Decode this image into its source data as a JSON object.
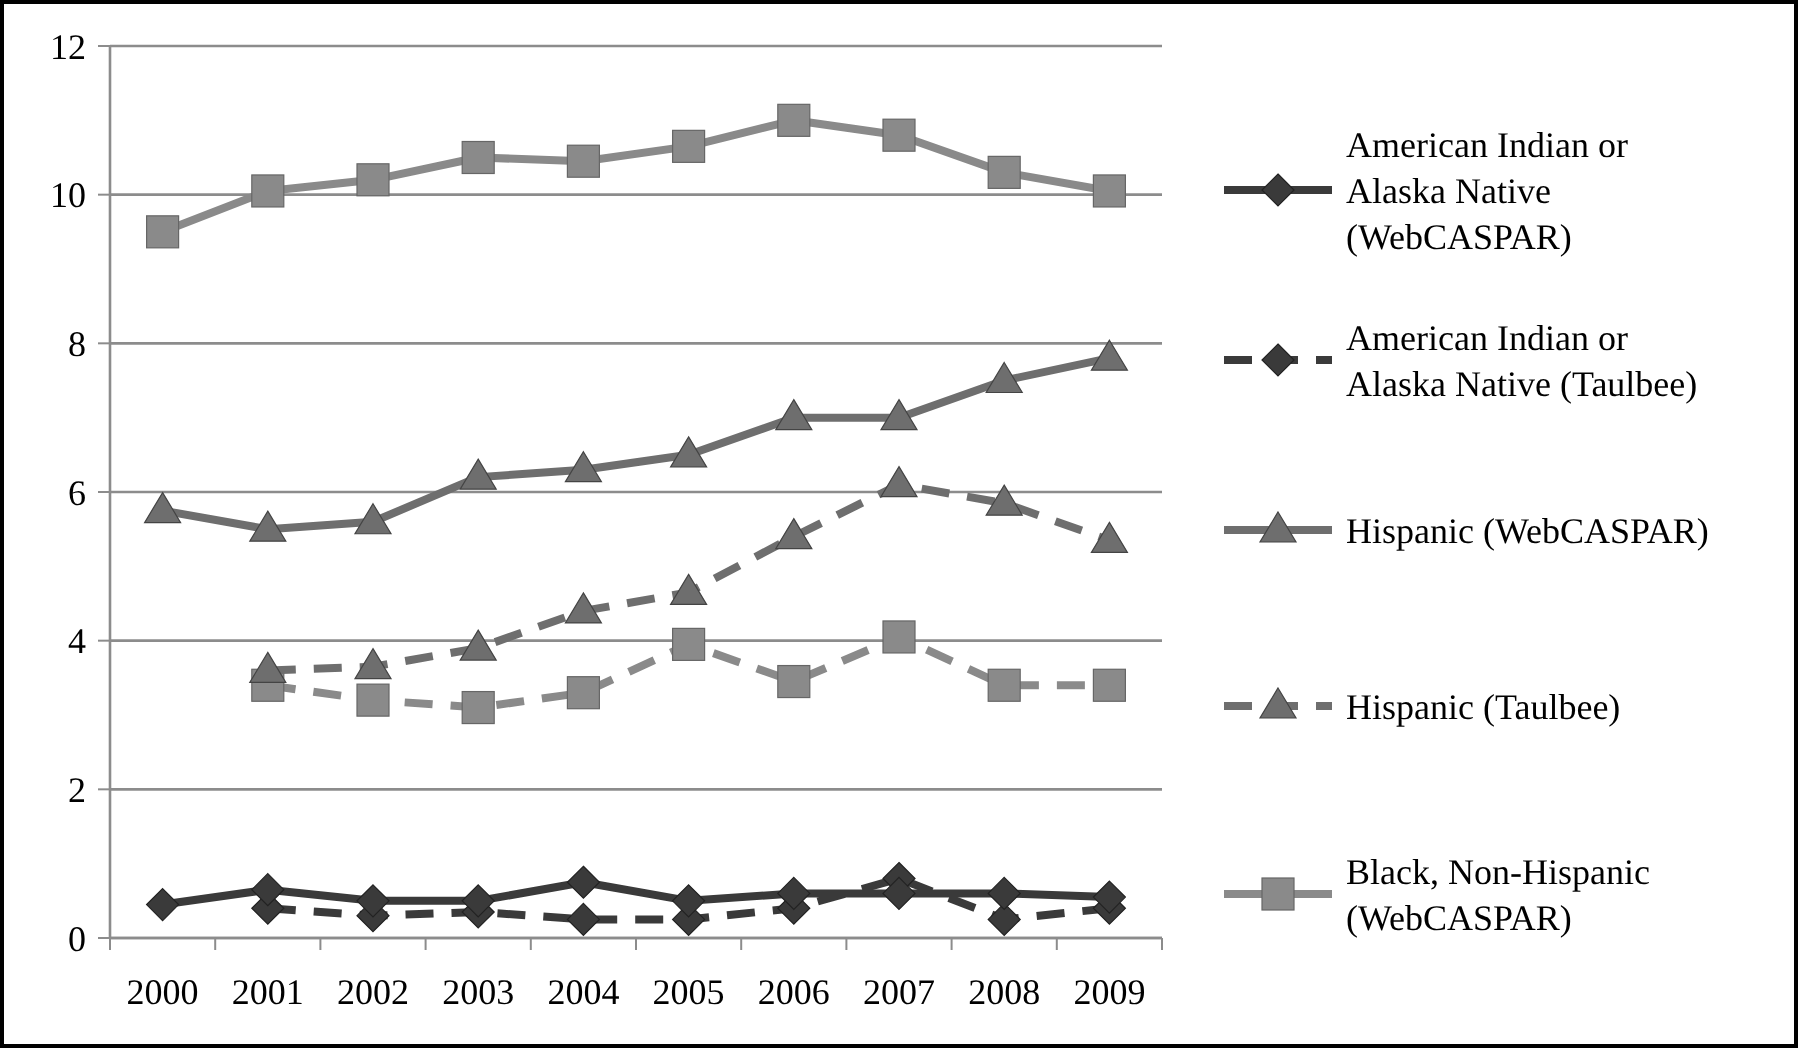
{
  "chart_data": {
    "type": "line",
    "categories": [
      "2000",
      "2001",
      "2002",
      "2003",
      "2004",
      "2005",
      "2006",
      "2007",
      "2008",
      "2009"
    ],
    "ylim": [
      0,
      12
    ],
    "yticks": [
      0,
      2,
      4,
      6,
      8,
      10,
      12
    ],
    "grid": "y",
    "legend": "right",
    "series": [
      {
        "name": "American Indian or Alaska Native (WebCASPAR)",
        "color": "#3a3a3a",
        "marker": "diamond",
        "line_style": "solid",
        "values": [
          0.45,
          0.65,
          0.5,
          0.5,
          0.75,
          0.5,
          0.6,
          0.6,
          0.6,
          0.55
        ]
      },
      {
        "name": "American Indian or Alaska Native (Taulbee)",
        "color": "#3a3a3a",
        "marker": "diamond",
        "line_style": "dashed",
        "values": [
          null,
          0.4,
          0.3,
          0.35,
          0.25,
          0.25,
          0.4,
          0.8,
          0.25,
          0.4
        ]
      },
      {
        "name": "Hispanic (WebCASPAR)",
        "color": "#6e6e6e",
        "marker": "triangle",
        "line_style": "solid",
        "values": [
          5.75,
          5.5,
          5.6,
          6.2,
          6.3,
          6.5,
          7.0,
          7.0,
          7.5,
          7.8
        ]
      },
      {
        "name": "Hispanic (Taulbee)",
        "color": "#6e6e6e",
        "marker": "triangle",
        "line_style": "dashed",
        "values": [
          null,
          3.6,
          3.65,
          3.9,
          4.4,
          4.65,
          5.4,
          6.1,
          5.85,
          5.35
        ]
      },
      {
        "name": "Black, Non-Hispanic (WebCASPAR)",
        "color": "#8a8a8a",
        "marker": "square",
        "line_style": "solid",
        "values": [
          9.5,
          10.05,
          10.2,
          10.5,
          10.45,
          10.65,
          11.0,
          10.8,
          10.3,
          10.05
        ]
      },
      {
        "color": "#8a8a8a",
        "marker": "square",
        "line_style": "dashed",
        "values": [
          null,
          3.4,
          3.2,
          3.1,
          3.3,
          3.95,
          3.45,
          4.05,
          3.4,
          3.4
        ]
      }
    ]
  }
}
